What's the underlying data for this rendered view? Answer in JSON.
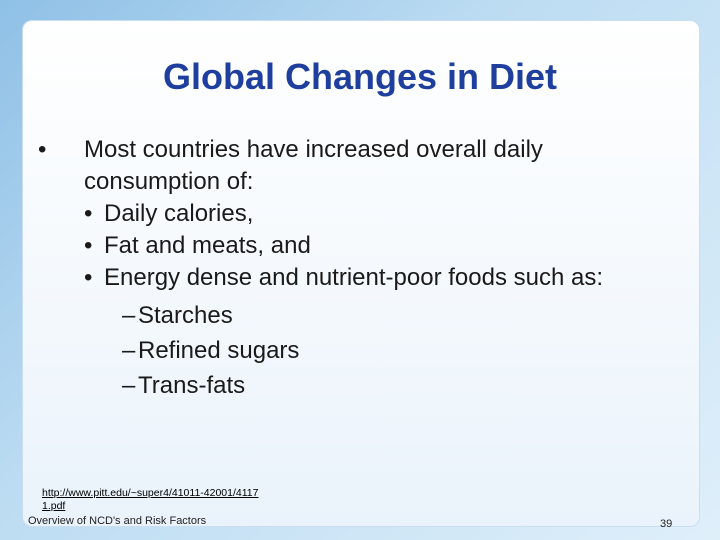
{
  "slide": {
    "title": "Global Changes in Diet",
    "bullets": [
      {
        "text": "Most countries have increased overall daily consumption of:",
        "items": [
          {
            "text": "Daily calories,"
          },
          {
            "text": "Fat and meats, and"
          },
          {
            "text": "Energy dense and nutrient-poor foods such as:",
            "items": [
              "Starches",
              "Refined sugars",
              "Trans-fats"
            ]
          }
        ]
      }
    ],
    "link": "http://www.pitt.edu/~super4/41011-42001/41171.pdf",
    "footer": "Overview of NCD's and Risk Factors",
    "page_number": "39"
  }
}
